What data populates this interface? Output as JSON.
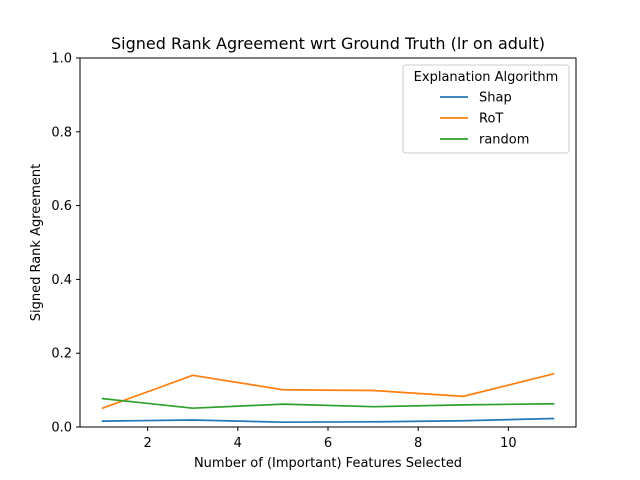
{
  "chart_data": {
    "type": "line",
    "title": "Signed Rank Agreement wrt Ground Truth (lr on adult)",
    "xlabel": "Number of (Important) Features Selected",
    "ylabel": "Signed Rank Agreement",
    "xlim": [
      0.5,
      11.5
    ],
    "ylim": [
      0,
      1.0
    ],
    "xticks": [
      2,
      4,
      6,
      8,
      10
    ],
    "yticks": [
      0.0,
      0.2,
      0.4,
      0.6,
      0.8,
      1.0
    ],
    "xtick_labels": [
      "2",
      "4",
      "6",
      "8",
      "10"
    ],
    "ytick_labels": [
      "0.0",
      "0.2",
      "0.4",
      "0.6",
      "0.8",
      "1.0"
    ],
    "grid": false,
    "legend": {
      "title": "Explanation Algorithm",
      "position": "top-right"
    },
    "x": [
      1,
      3,
      5,
      7,
      9,
      11
    ],
    "series": [
      {
        "name": "Shap",
        "color": "#1f77b4",
        "values": [
          0.016,
          0.019,
          0.013,
          0.014,
          0.017,
          0.023
        ]
      },
      {
        "name": "RoT",
        "color": "#ff7f0e",
        "values": [
          0.051,
          0.14,
          0.101,
          0.099,
          0.083,
          0.144
        ]
      },
      {
        "name": "random",
        "color": "#2ca02c",
        "values": [
          0.077,
          0.051,
          0.062,
          0.055,
          0.06,
          0.063
        ]
      }
    ]
  }
}
